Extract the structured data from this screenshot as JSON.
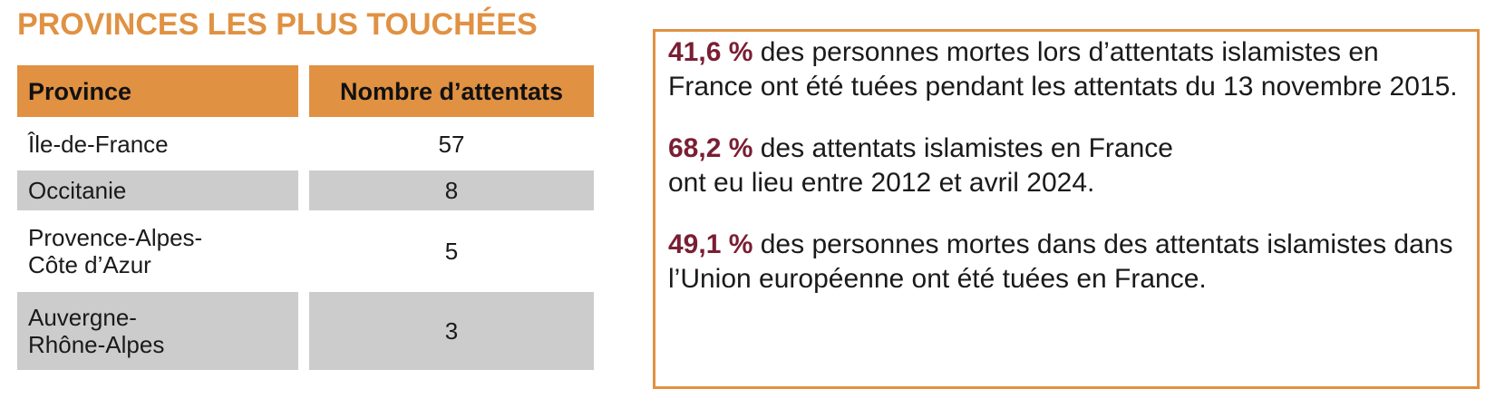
{
  "title": "PROVINCES LES PLUS TOUCHÉES",
  "colors": {
    "accent": "#E09142",
    "highlight": "#7A1E33",
    "row_gray": "#CCCCCC"
  },
  "table": {
    "headers": [
      "Province",
      "Nombre d’attentats"
    ],
    "rows": [
      {
        "province": "Île-de-France",
        "count": "57"
      },
      {
        "province": "Occitanie",
        "count": "8"
      },
      {
        "province": "Provence-Alpes-\nCôte d’Azur",
        "count": "5"
      },
      {
        "province": "Auvergne-\nRhône-Alpes",
        "count": "3"
      }
    ]
  },
  "stats": [
    {
      "value": "41,6 %",
      "text": " des personnes mortes lors d’attentats islamistes en France ont été tuées pendant les attentats du 13 novembre 2015."
    },
    {
      "value": "68,2 %",
      "text": " des attentats islamistes en France\nont eu lieu entre 2012 et avril 2024."
    },
    {
      "value": "49,1 %",
      "text": " des personnes mortes dans des attentats islamistes dans l’Union européenne ont été tuées en France."
    }
  ]
}
